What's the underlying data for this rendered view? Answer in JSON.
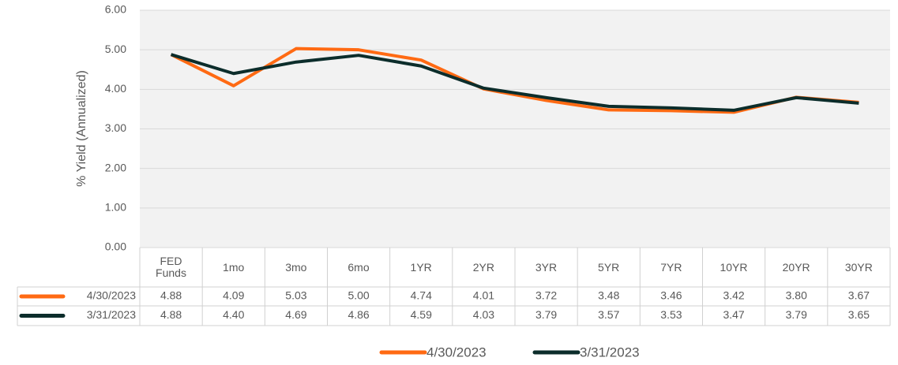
{
  "chart_data": {
    "type": "line",
    "y_label": "% Yield (Annualized)",
    "categories": [
      "FED Funds",
      "1mo",
      "3mo",
      "6mo",
      "1YR",
      "2YR",
      "3YR",
      "5YR",
      "7YR",
      "10YR",
      "20YR",
      "30YR"
    ],
    "series": [
      {
        "name": "4/30/2023",
        "color": "#ff6a13",
        "values": [
          4.88,
          4.09,
          5.03,
          5.0,
          4.74,
          4.01,
          3.72,
          3.48,
          3.46,
          3.42,
          3.8,
          3.67
        ],
        "value_labels": [
          "4.88",
          "4.09",
          "5.03",
          "5.00",
          "4.74",
          "4.01",
          "3.72",
          "3.48",
          "3.46",
          "3.42",
          "3.80",
          "3.67"
        ]
      },
      {
        "name": "3/31/2023",
        "color": "#0c2d2b",
        "values": [
          4.88,
          4.4,
          4.69,
          4.86,
          4.59,
          4.03,
          3.79,
          3.57,
          3.53,
          3.47,
          3.79,
          3.65
        ],
        "value_labels": [
          "4.88",
          "4.40",
          "4.69",
          "4.86",
          "4.59",
          "4.03",
          "3.79",
          "3.57",
          "3.53",
          "3.47",
          "3.79",
          "3.65"
        ]
      }
    ],
    "ylim": [
      0,
      6
    ],
    "yticks": [
      {
        "value": 0,
        "label": "0.00"
      },
      {
        "value": 1,
        "label": "1.00"
      },
      {
        "value": 2,
        "label": "2.00"
      },
      {
        "value": 3,
        "label": "3.00"
      },
      {
        "value": 4,
        "label": "4.00"
      },
      {
        "value": 5,
        "label": "5.00"
      },
      {
        "value": 6,
        "label": "6.00"
      }
    ],
    "grid": true
  }
}
